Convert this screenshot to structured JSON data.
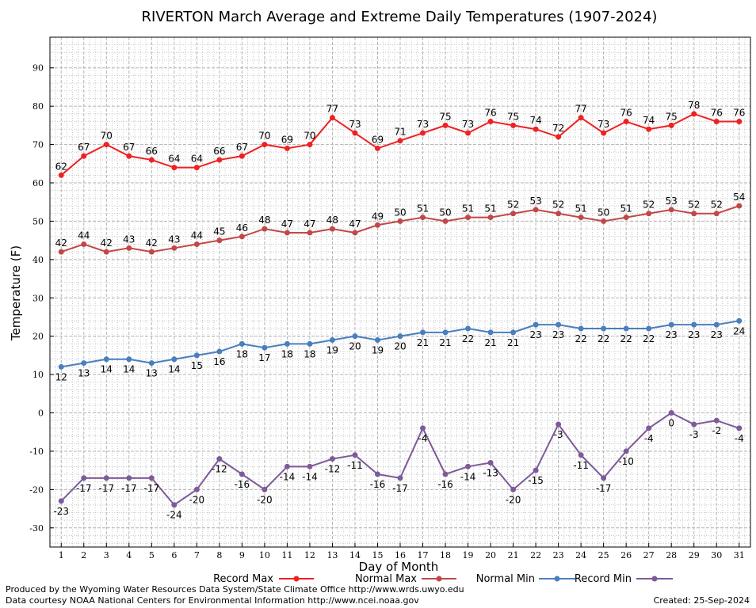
{
  "chart_data": {
    "type": "line",
    "title": "RIVERTON March Average and Extreme Daily Temperatures (1907-2024)",
    "xlabel": "Day of Month",
    "ylabel": "Temperature (F)",
    "x": [
      1,
      2,
      3,
      4,
      5,
      6,
      7,
      8,
      9,
      10,
      11,
      12,
      13,
      14,
      15,
      16,
      17,
      18,
      19,
      20,
      21,
      22,
      23,
      24,
      25,
      26,
      27,
      28,
      29,
      30,
      31
    ],
    "xlim": [
      0.5,
      31.5
    ],
    "ylim": [
      -35,
      98
    ],
    "yticks": [
      -30,
      -20,
      -10,
      0,
      10,
      20,
      30,
      40,
      50,
      60,
      70,
      80,
      90
    ],
    "grid": true,
    "legend_position": "bottom",
    "series": [
      {
        "name": "Record Max",
        "color": "#ee2222",
        "values": [
          62,
          67,
          70,
          67,
          66,
          64,
          64,
          66,
          67,
          70,
          69,
          70,
          77,
          73,
          69,
          71,
          73,
          75,
          73,
          76,
          75,
          74,
          72,
          77,
          73,
          76,
          74,
          75,
          78,
          76,
          76
        ]
      },
      {
        "name": "Normal Max",
        "color": "#c04848",
        "values": [
          42,
          44,
          42,
          43,
          42,
          43,
          44,
          45,
          46,
          48,
          47,
          47,
          48,
          47,
          49,
          50,
          51,
          50,
          51,
          51,
          52,
          53,
          52,
          51,
          50,
          51,
          52,
          53,
          52,
          52,
          54
        ]
      },
      {
        "name": "Normal Min",
        "color": "#4a7fbd",
        "values": [
          12,
          13,
          14,
          14,
          13,
          14,
          15,
          16,
          18,
          17,
          18,
          18,
          19,
          20,
          19,
          20,
          21,
          21,
          22,
          21,
          21,
          23,
          23,
          22,
          22,
          22,
          22,
          23,
          23,
          23,
          24
        ]
      },
      {
        "name": "Record Min",
        "color": "#7d5a99",
        "values": [
          -23,
          -17,
          -17,
          -17,
          -17,
          -24,
          -20,
          -12,
          -16,
          -20,
          -14,
          -14,
          -12,
          -11,
          -16,
          -17,
          -4,
          -16,
          -14,
          -13,
          -20,
          -15,
          -3,
          -11,
          -17,
          -10,
          -4,
          0,
          -3,
          -2,
          -4
        ]
      }
    ]
  },
  "footer": {
    "line1": "Produced by the Wyoming Water Resources Data System/State Climate Office http://www.wrds.uwyo.edu",
    "line2": "Data courtesy NOAA National Centers for Environmental Information http://www.ncei.noaa.gov",
    "created": "Created:  25-Sep-2024"
  }
}
